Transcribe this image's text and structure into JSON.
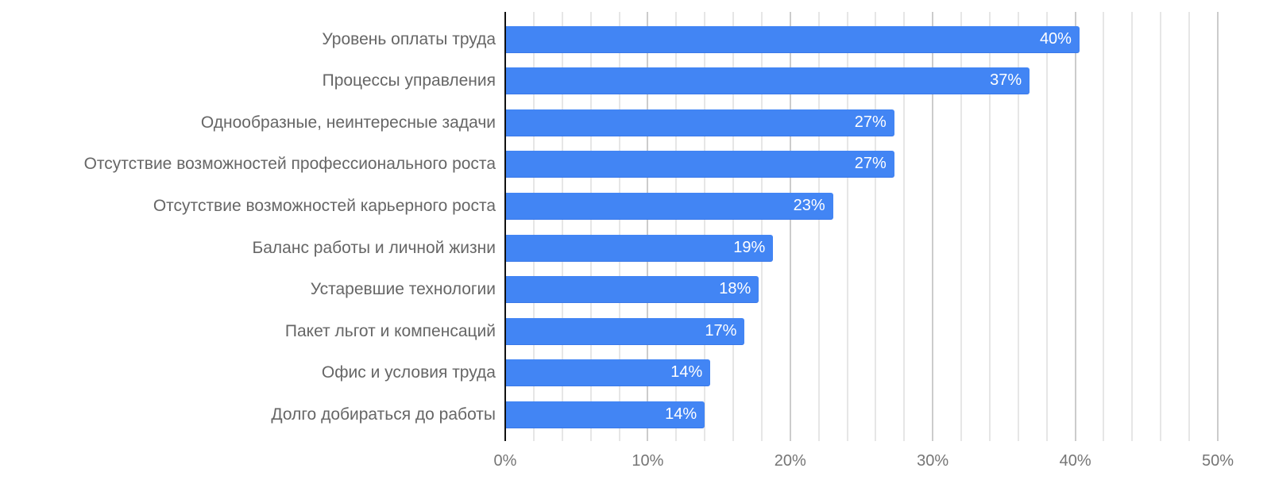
{
  "chart_data": {
    "type": "bar",
    "orientation": "horizontal",
    "title": "",
    "xlabel": "",
    "ylabel": "",
    "xlim": [
      0,
      50
    ],
    "grid": true,
    "legend": null,
    "categories": [
      "Уровень оплаты труда",
      "Процессы управления",
      "Однообразные, неинтересные задачи",
      "Отсутствие возможностей профессионального роста",
      "Отсутствие возможностей карьерного роста",
      "Баланс работы и личной жизни",
      "Устаревшие технологии",
      "Пакет льгот и компенсаций",
      "Офис и условия труда",
      "Долго добираться до работы"
    ],
    "values": [
      40.3,
      36.8,
      27.3,
      27.3,
      23.0,
      18.8,
      17.8,
      16.8,
      14.4,
      14.0
    ],
    "value_labels": [
      "40%",
      "37%",
      "27%",
      "27%",
      "23%",
      "19%",
      "18%",
      "17%",
      "14%",
      "14%"
    ],
    "x_ticks": [
      "0%",
      "10%",
      "20%",
      "30%",
      "40%",
      "50%"
    ],
    "bar_color": "#4285f4"
  }
}
